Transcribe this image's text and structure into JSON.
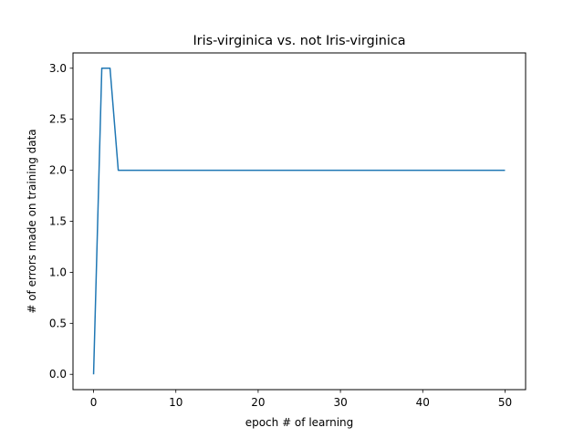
{
  "chart_data": {
    "type": "line",
    "title": "Iris-virginica vs. not Iris-virginica",
    "xlabel": "epoch # of learning",
    "ylabel": "# of errors made on training data",
    "xlim": [
      -2.5,
      52.5
    ],
    "ylim": [
      -0.15,
      3.15
    ],
    "x_ticks": [
      0,
      10,
      20,
      30,
      40,
      50
    ],
    "y_ticks": [
      0.0,
      0.5,
      1.0,
      1.5,
      2.0,
      2.5,
      3.0
    ],
    "x_tick_labels": [
      "0",
      "10",
      "20",
      "30",
      "40",
      "50"
    ],
    "y_tick_labels": [
      "0.0",
      "0.5",
      "1.0",
      "1.5",
      "2.0",
      "2.5",
      "3.0"
    ],
    "grid": false,
    "series": [
      {
        "color": "#1f77b4",
        "x": [
          0,
          1,
          2,
          3,
          4,
          5,
          6,
          7,
          8,
          9,
          10,
          11,
          12,
          13,
          14,
          15,
          16,
          17,
          18,
          19,
          20,
          21,
          22,
          23,
          24,
          25,
          26,
          27,
          28,
          29,
          30,
          31,
          32,
          33,
          34,
          35,
          36,
          37,
          38,
          39,
          40,
          41,
          42,
          43,
          44,
          45,
          46,
          47,
          48,
          49,
          50
        ],
        "values": [
          0,
          3,
          3,
          2,
          2,
          2,
          2,
          2,
          2,
          2,
          2,
          2,
          2,
          2,
          2,
          2,
          2,
          2,
          2,
          2,
          2,
          2,
          2,
          2,
          2,
          2,
          2,
          2,
          2,
          2,
          2,
          2,
          2,
          2,
          2,
          2,
          2,
          2,
          2,
          2,
          2,
          2,
          2,
          2,
          2,
          2,
          2,
          2,
          2,
          2,
          2
        ]
      }
    ]
  }
}
